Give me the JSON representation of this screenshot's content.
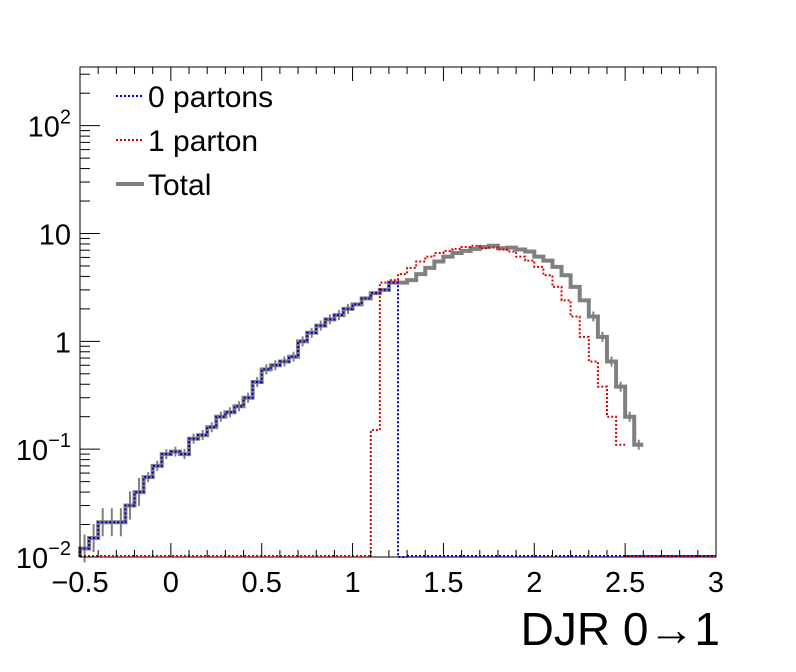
{
  "chart_data": {
    "type": "line",
    "subtype": "step-histogram",
    "title": "",
    "xlabel": "DJR 0→1",
    "ylabel": "",
    "xlim": [
      -0.5,
      3.0
    ],
    "ylim": [
      0.01,
      350
    ],
    "yscale": "log",
    "x_ticks": [
      {
        "value": -0.5,
        "label": "−0.5"
      },
      {
        "value": 0,
        "label": "0"
      },
      {
        "value": 0.5,
        "label": "0.5"
      },
      {
        "value": 1,
        "label": "1"
      },
      {
        "value": 1.5,
        "label": "1.5"
      },
      {
        "value": 2,
        "label": "2"
      },
      {
        "value": 2.5,
        "label": "2.5"
      },
      {
        "value": 3,
        "label": "3"
      }
    ],
    "y_ticks": [
      {
        "value": 0.01,
        "base": "10",
        "exp": "−2",
        "label": ""
      },
      {
        "value": 0.1,
        "base": "10",
        "exp": "−1",
        "label": ""
      },
      {
        "value": 1,
        "base": "",
        "exp": "",
        "label": "1"
      },
      {
        "value": 10,
        "base": "",
        "exp": "",
        "label": "10"
      },
      {
        "value": 100,
        "base": "10",
        "exp": "2",
        "label": ""
      }
    ],
    "grid": false,
    "legend_position": "top-left",
    "bin_width": 0.05,
    "series": [
      {
        "name": "0 partons",
        "color": "#0000cc",
        "style": "dotted",
        "x_start": -0.5,
        "values": [
          0.012,
          0.015,
          0.021,
          0.021,
          0.021,
          0.03,
          0.04,
          0.055,
          0.07,
          0.09,
          0.095,
          0.09,
          0.125,
          0.135,
          0.16,
          0.2,
          0.22,
          0.25,
          0.3,
          0.42,
          0.55,
          0.6,
          0.65,
          0.72,
          1.0,
          1.2,
          1.4,
          1.6,
          1.75,
          2.0,
          2.2,
          2.5,
          2.8,
          3.0,
          3.5,
          0.0
        ]
      },
      {
        "name": "1 parton",
        "color": "#dd0000",
        "style": "dotted",
        "x_start": 1.1,
        "values": [
          0.15,
          3.5,
          3.7,
          4.2,
          4.8,
          5.5,
          6.1,
          6.6,
          6.9,
          7.2,
          7.5,
          7.7,
          7.3,
          7.4,
          7.1,
          6.8,
          6.1,
          5.6,
          4.9,
          4.1,
          3.2,
          2.4,
          1.7,
          1.1,
          0.65,
          0.38,
          0.2,
          0.11
        ]
      },
      {
        "name": "Total",
        "color": "#808080",
        "style": "solid",
        "x_start": -0.5,
        "values": [
          0.012,
          0.015,
          0.021,
          0.021,
          0.021,
          0.03,
          0.04,
          0.055,
          0.07,
          0.09,
          0.095,
          0.09,
          0.125,
          0.135,
          0.16,
          0.2,
          0.22,
          0.25,
          0.3,
          0.42,
          0.55,
          0.6,
          0.65,
          0.72,
          1.0,
          1.2,
          1.4,
          1.6,
          1.75,
          2.0,
          2.2,
          2.5,
          2.8,
          3.0,
          3.5,
          3.5,
          3.7,
          4.2,
          4.8,
          5.5,
          6.1,
          6.6,
          6.9,
          7.2,
          7.5,
          7.7,
          7.3,
          7.4,
          7.1,
          6.8,
          6.1,
          5.6,
          4.9,
          4.1,
          3.2,
          2.4,
          1.7,
          1.1,
          0.65,
          0.38,
          0.2,
          0.11
        ]
      }
    ]
  }
}
